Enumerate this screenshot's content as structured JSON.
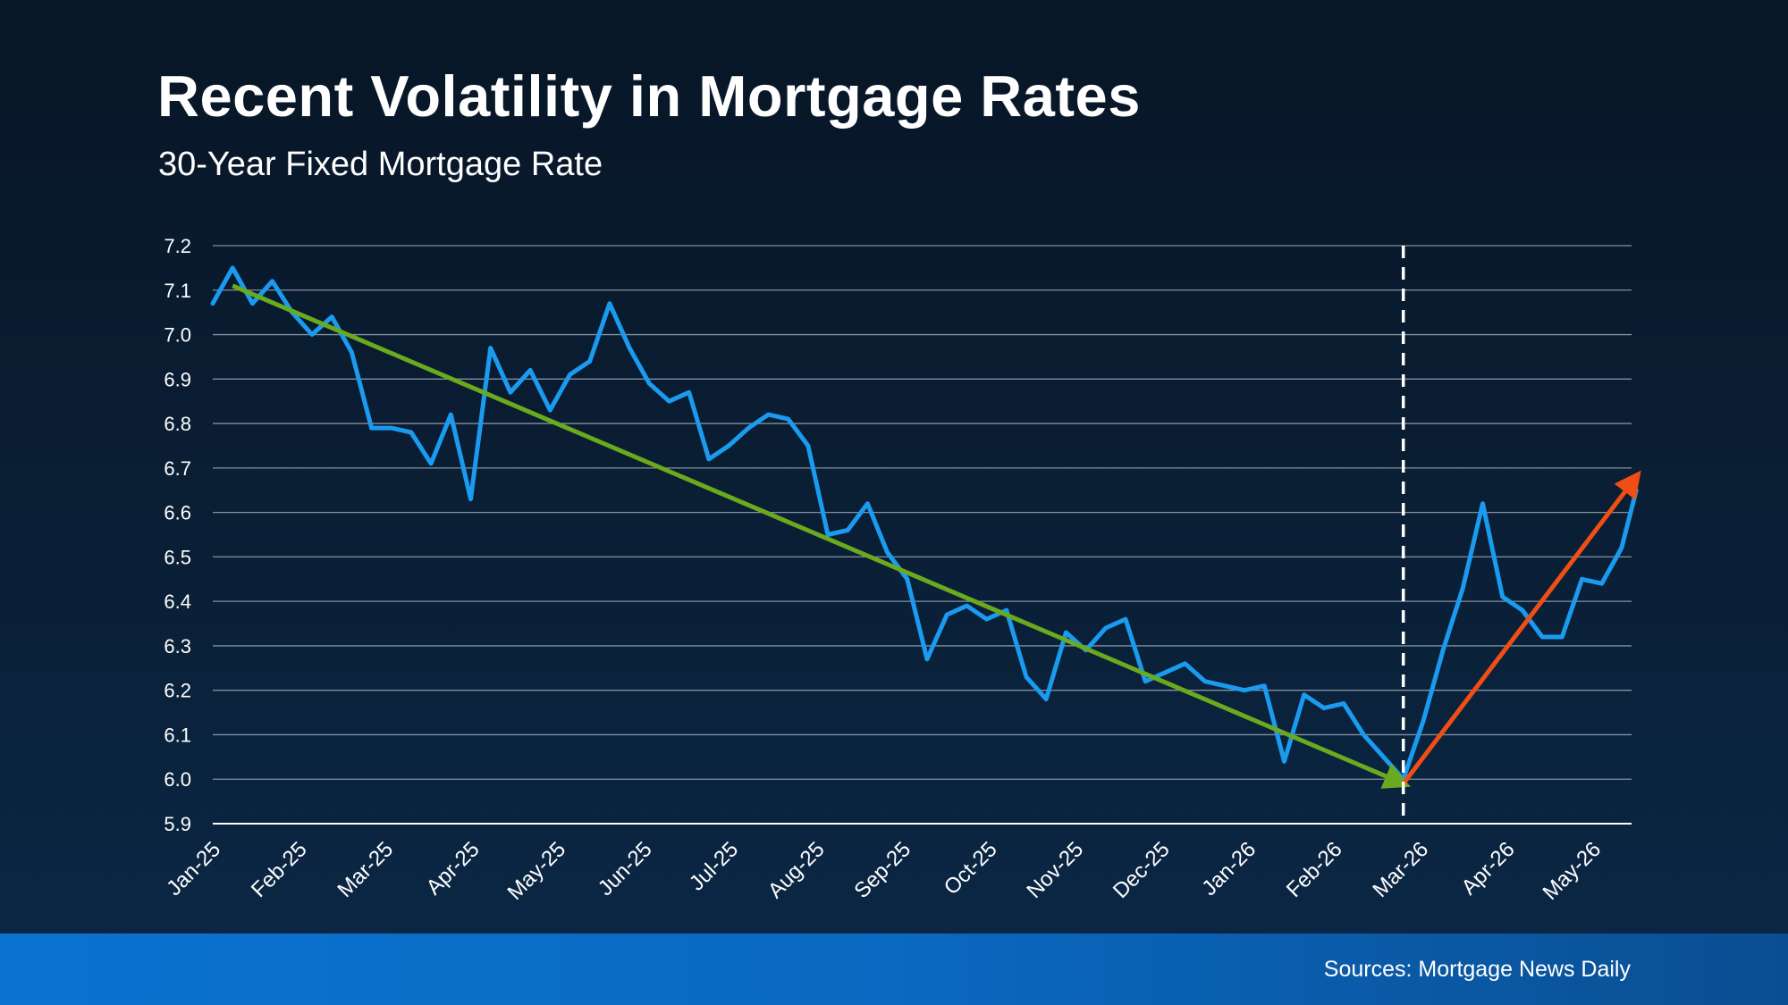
{
  "title": "Recent Volatility in Mortgage Rates",
  "subtitle": "30-Year Fixed Mortgage Rate",
  "source": "Sources: Mortgage News Daily",
  "colors": {
    "series": "#1a9bf0",
    "trend_down": "#6aaa1e",
    "trend_up": "#f04e14",
    "grid": "#8391a0",
    "marker": "#ffffff",
    "footer": "#0a6cc6"
  },
  "chart_data": {
    "type": "line",
    "title": "Recent Volatility in Mortgage Rates",
    "subtitle": "30-Year Fixed Mortgage Rate",
    "ylim": [
      5.9,
      7.2
    ],
    "yticks": [
      "7.2",
      "7.1",
      "7.0",
      "6.9",
      "6.8",
      "6.7",
      "6.6",
      "6.5",
      "6.4",
      "6.3",
      "6.2",
      "6.1",
      "6.0",
      "5.9"
    ],
    "categories": [
      "Jan-25",
      "Feb-25",
      "Mar-25",
      "Apr-25",
      "May-25",
      "Jun-25",
      "Jul-25",
      "Aug-25",
      "Sep-25",
      "Oct-25",
      "Nov-25",
      "Dec-25",
      "Jan-26",
      "Feb-26",
      "Mar-26",
      "Apr-26",
      "May-26"
    ],
    "grid": true,
    "series": [
      {
        "values": [
          [
            0.0,
            7.07
          ],
          [
            0.23,
            7.15
          ],
          [
            0.46,
            7.07
          ],
          [
            0.69,
            7.12
          ],
          [
            0.92,
            7.05
          ],
          [
            1.15,
            7.0
          ],
          [
            1.38,
            7.04
          ],
          [
            1.61,
            6.96
          ],
          [
            1.84,
            6.79
          ],
          [
            2.07,
            6.79
          ],
          [
            2.3,
            6.78
          ],
          [
            2.53,
            6.71
          ],
          [
            2.76,
            6.82
          ],
          [
            2.99,
            6.63
          ],
          [
            3.22,
            6.97
          ],
          [
            3.45,
            6.87
          ],
          [
            3.68,
            6.92
          ],
          [
            3.91,
            6.83
          ],
          [
            4.14,
            6.91
          ],
          [
            4.37,
            6.94
          ],
          [
            4.6,
            7.07
          ],
          [
            4.83,
            6.97
          ],
          [
            5.06,
            6.89
          ],
          [
            5.29,
            6.85
          ],
          [
            5.52,
            6.87
          ],
          [
            5.75,
            6.72
          ],
          [
            5.98,
            6.75
          ],
          [
            6.21,
            6.79
          ],
          [
            6.44,
            6.82
          ],
          [
            6.67,
            6.81
          ],
          [
            6.9,
            6.75
          ],
          [
            7.13,
            6.55
          ],
          [
            7.36,
            6.56
          ],
          [
            7.59,
            6.62
          ],
          [
            7.82,
            6.51
          ],
          [
            8.05,
            6.45
          ],
          [
            8.28,
            6.27
          ],
          [
            8.51,
            6.37
          ],
          [
            8.74,
            6.39
          ],
          [
            8.97,
            6.36
          ],
          [
            9.2,
            6.38
          ],
          [
            9.43,
            6.23
          ],
          [
            9.66,
            6.18
          ],
          [
            9.89,
            6.33
          ],
          [
            10.12,
            6.29
          ],
          [
            10.35,
            6.34
          ],
          [
            10.58,
            6.36
          ],
          [
            10.81,
            6.22
          ],
          [
            11.04,
            6.24
          ],
          [
            11.27,
            6.26
          ],
          [
            11.5,
            6.22
          ],
          [
            11.73,
            6.21
          ],
          [
            11.96,
            6.2
          ],
          [
            12.19,
            6.21
          ],
          [
            12.42,
            6.04
          ],
          [
            12.65,
            6.19
          ],
          [
            12.88,
            6.16
          ],
          [
            13.11,
            6.17
          ],
          [
            13.34,
            6.1
          ],
          [
            13.57,
            6.05
          ],
          [
            13.8,
            6.0
          ],
          [
            14.03,
            6.13
          ],
          [
            14.26,
            6.29
          ],
          [
            14.49,
            6.43
          ],
          [
            14.72,
            6.62
          ],
          [
            14.95,
            6.41
          ],
          [
            15.18,
            6.38
          ],
          [
            15.41,
            6.32
          ],
          [
            15.64,
            6.32
          ],
          [
            15.87,
            6.45
          ],
          [
            16.1,
            6.44
          ],
          [
            16.33,
            6.52
          ],
          [
            16.5,
            6.65
          ]
        ]
      }
    ],
    "trend_lines": [
      {
        "direction": "down",
        "from": [
          0.23,
          7.11
        ],
        "to": [
          13.8,
          5.99
        ]
      },
      {
        "direction": "up",
        "from": [
          13.8,
          5.99
        ],
        "to": [
          16.5,
          6.68
        ]
      }
    ],
    "vertical_marker": {
      "x": 13.8,
      "style": "dashed"
    }
  }
}
